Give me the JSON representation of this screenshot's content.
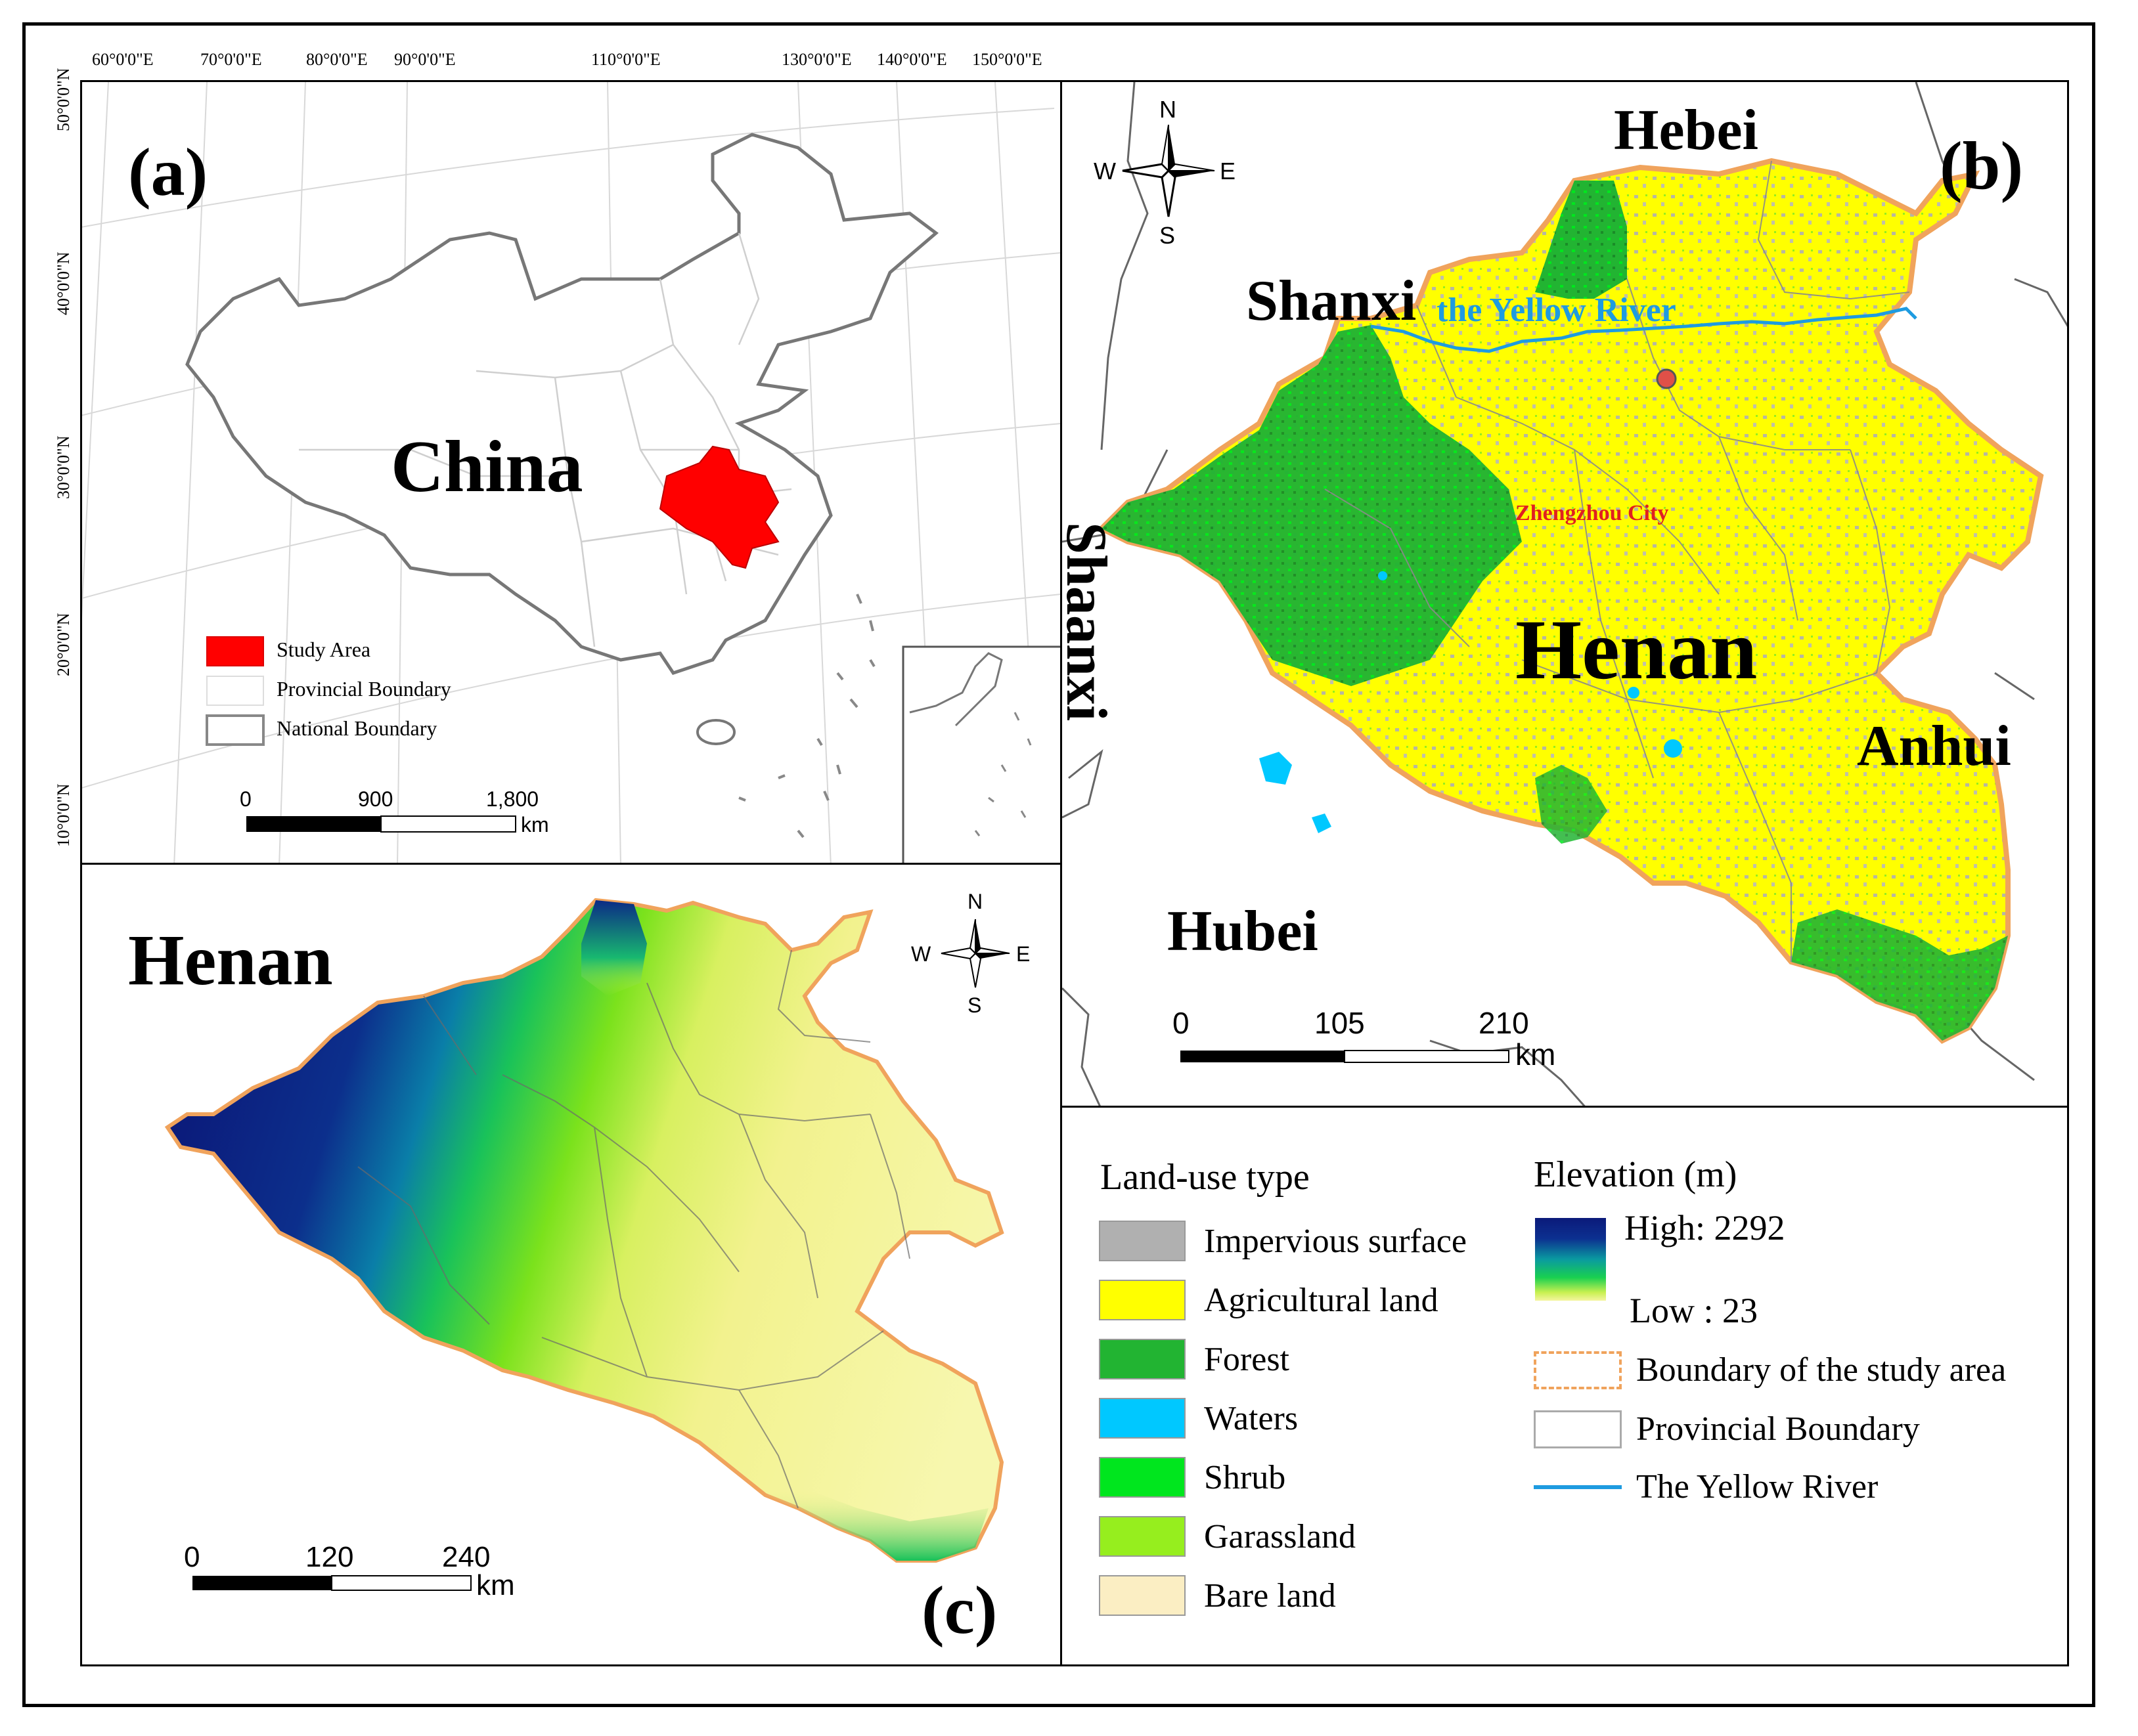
{
  "colors": {
    "study_area": "#ff0000",
    "impervious": "#b0b0b0",
    "agricultural": "#ffff00",
    "forest": "#22b432",
    "waters": "#00c8ff",
    "shrub": "#00e61e",
    "grassland": "#96ee1e",
    "bare": "#fbeec3",
    "boundary_study": "#f0a35c",
    "yellow_river": "#1e9be0",
    "elev_high": "#0b1a7a",
    "elev_low": "#f5f5a0"
  },
  "panel_a": {
    "label": "(a)",
    "country": "China",
    "lon_ticks": [
      "60°0'0\"E",
      "70°0'0\"E",
      "80°0'0\"E",
      "90°0'0\"E",
      "110°0'0\"E",
      "130°0'0\"E",
      "140°0'0\"E",
      "150°0'0\"E"
    ],
    "lat_ticks": [
      "50°0'0\"N",
      "40°0'0\"N",
      "30°0'0\"N",
      "20°0'0\"N",
      "10°0'0\"N"
    ],
    "legend": {
      "study_area": "Study Area",
      "provincial": "Provincial Boundary",
      "national": "National Boundary"
    },
    "scale": {
      "t0": "0",
      "t1": "900",
      "t2": "1,800",
      "unit": "km"
    }
  },
  "panel_b": {
    "label": "(b)",
    "compass": {
      "n": "N",
      "s": "S",
      "e": "E",
      "w": "W"
    },
    "provinces": {
      "hebei": "Hebei",
      "shanxi": "Shanxi",
      "shaanxi": "Shaanxi",
      "henan": "Henan",
      "anhui": "Anhui",
      "hubei": "Hubei"
    },
    "river": "the Yellow River",
    "city": "Zhengzhou City",
    "scale": {
      "t0": "0",
      "t1": "105",
      "t2": "210",
      "unit": "km"
    }
  },
  "panel_c": {
    "label": "(c)",
    "title": "Henan",
    "compass": {
      "n": "N",
      "s": "S",
      "e": "E",
      "w": "W"
    },
    "scale": {
      "t0": "0",
      "t1": "120",
      "t2": "240",
      "unit": "km"
    }
  },
  "legend": {
    "landuse_title": "Land-use type",
    "landuse_items": [
      "Impervious surface",
      "Agricultural land",
      "Forest",
      "Waters",
      "Shrub",
      "Garassland",
      "Bare land"
    ],
    "elev_title": "Elevation (m)",
    "elev_high": "High: 2292",
    "elev_low": "Low : 23",
    "boundary_study": "Boundary of the study area",
    "provincial": "Provincial Boundary",
    "river": "The Yellow River"
  }
}
